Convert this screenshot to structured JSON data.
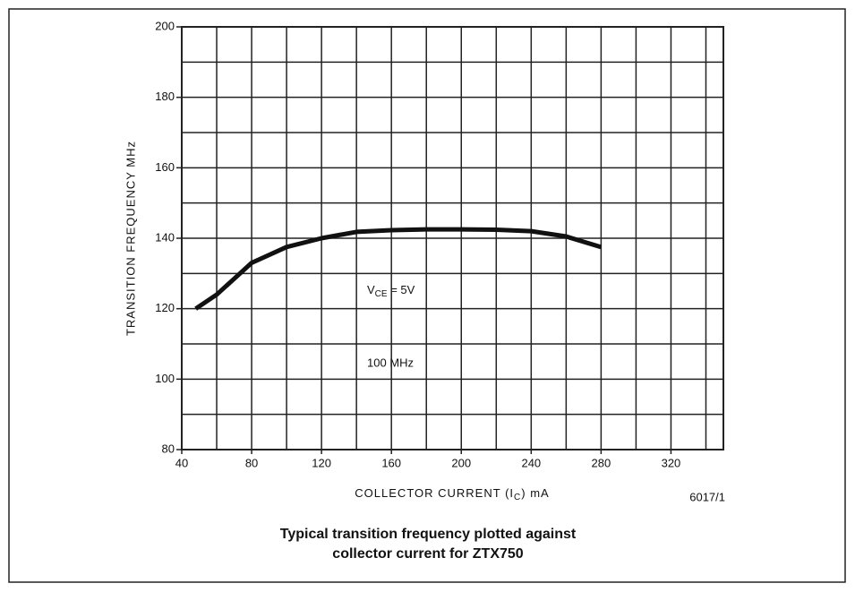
{
  "chart_data": {
    "type": "line",
    "x_label": {
      "main": "COLLECTOR CURRENT (I",
      "sub": "C",
      "rest": ") mA"
    },
    "y_label": "TRANSITION FREQUENCY MHz",
    "caption": [
      "Typical transition frequency plotted against",
      "collector current for ZTX750"
    ],
    "figure_code": "6017/1",
    "annotations": [
      {
        "main": "V",
        "sub": "CE",
        "rest": " = 5V"
      },
      {
        "text": "100 MHz"
      }
    ],
    "x": [
      48,
      60,
      80,
      100,
      120,
      140,
      160,
      180,
      200,
      220,
      240,
      260,
      280
    ],
    "series": [
      {
        "color": "#111111",
        "values": [
          120,
          124,
          133,
          137.5,
          140,
          141.8,
          142.3,
          142.5,
          142.5,
          142.4,
          142,
          140.5,
          137.5
        ]
      }
    ],
    "xlim": [
      40,
      350
    ],
    "ylim": [
      80,
      200
    ],
    "xticks": [
      40,
      80,
      120,
      160,
      200,
      240,
      280,
      320
    ],
    "yticks": [
      80,
      100,
      120,
      140,
      160,
      180,
      200
    ],
    "xgrid": [
      60,
      80,
      100,
      120,
      140,
      160,
      180,
      200,
      220,
      240,
      260,
      280,
      300,
      320,
      340
    ],
    "ygrid": [
      90,
      100,
      110,
      120,
      130,
      140,
      150,
      160,
      170,
      180,
      190
    ],
    "grid": true
  }
}
